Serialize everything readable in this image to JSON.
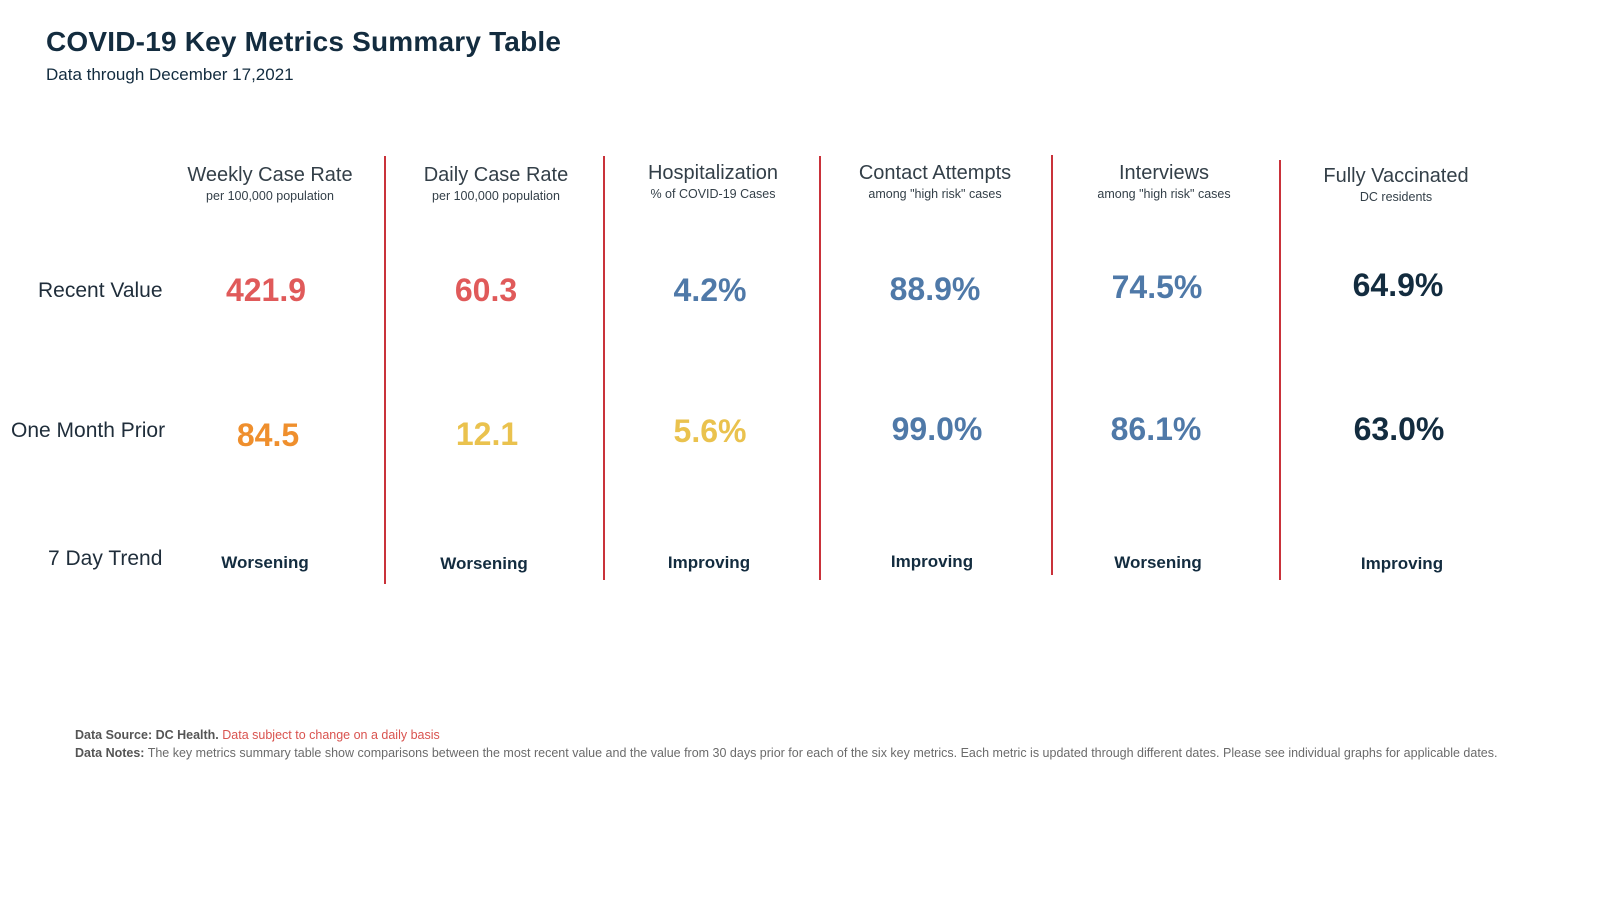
{
  "title": "COVID-19 Key Metrics Summary Table",
  "subtitle": "Data through December 17,2021",
  "colors": {
    "red": "#e05a5a",
    "orange": "#ef8f2d",
    "yellow": "#eac24e",
    "blue": "#4f79a8",
    "navy": "#132c3f",
    "divider": "#c9323a"
  },
  "chart_data": {
    "type": "table",
    "row_labels": [
      "Recent Value",
      "One Month Prior",
      "7 Day Trend"
    ],
    "columns": [
      {
        "header": "Weekly Case Rate",
        "sub": "per 100,000 population",
        "recent": "421.9",
        "prior": "84.5",
        "trend": "Worsening",
        "recent_color": "red",
        "prior_color": "orange"
      },
      {
        "header": "Daily Case Rate",
        "sub": "per 100,000 population",
        "recent": "60.3",
        "prior": "12.1",
        "trend": "Worsening",
        "recent_color": "red",
        "prior_color": "yellow"
      },
      {
        "header": "Hospitalization",
        "sub": "% of COVID-19 Cases",
        "recent": "4.2%",
        "prior": "5.6%",
        "trend": "Improving",
        "recent_color": "blue",
        "prior_color": "yellow"
      },
      {
        "header": "Contact Attempts",
        "sub": "among \"high risk\" cases",
        "recent": "88.9%",
        "prior": "99.0%",
        "trend": "Improving",
        "recent_color": "blue",
        "prior_color": "blue"
      },
      {
        "header": "Interviews",
        "sub": "among \"high risk\" cases",
        "recent": "74.5%",
        "prior": "86.1%",
        "trend": "Worsening",
        "recent_color": "blue",
        "prior_color": "blue"
      },
      {
        "header": "Fully Vaccinated",
        "sub": "DC residents",
        "recent": "64.9%",
        "prior": "63.0%",
        "trend": "Improving",
        "recent_color": "navy",
        "prior_color": "navy"
      }
    ]
  },
  "notes": {
    "source_label": "Data Source: DC Health.",
    "source_warning": "Data subject to change on a daily basis",
    "notes_label": "Data Notes:",
    "notes_text": "The key metrics summary table show comparisons between the most recent value and the value from 30 days prior for each of the six key metrics. Each metric is updated through different dates. Please see individual graphs for applicable dates."
  }
}
